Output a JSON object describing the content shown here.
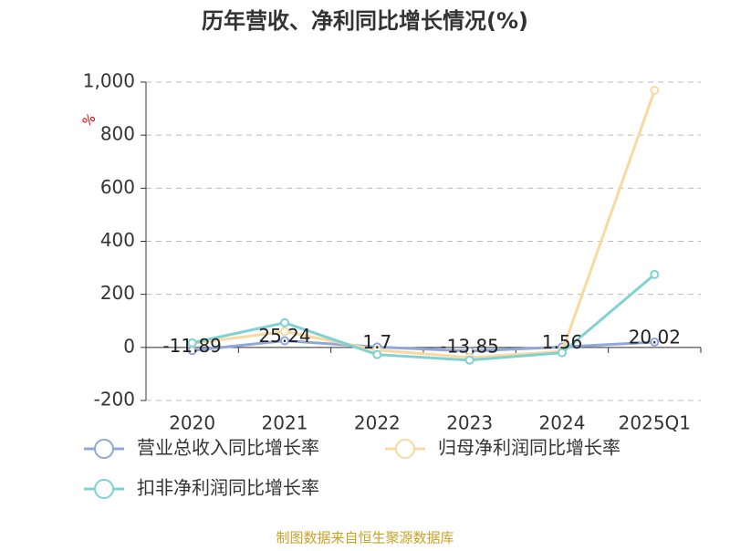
{
  "chart_data": {
    "type": "line",
    "title": "历年营收、净利同比增长情况(%)",
    "y_unit": "%",
    "source": "制图数据来自恒生聚源数据库",
    "categories": [
      "2020",
      "2021",
      "2022",
      "2023",
      "2024",
      "2025Q1"
    ],
    "series": [
      {
        "name": "营业总收入同比增长率",
        "color": "#8fa8d8",
        "values": [
          -11.89,
          25.24,
          1.7,
          -13.85,
          1.56,
          20.02
        ],
        "show_labels": true
      },
      {
        "name": "归母净利润同比增长率",
        "color": "#f8d9a0",
        "values": [
          15,
          60,
          -10,
          -38,
          -15,
          969
        ],
        "show_labels": false
      },
      {
        "name": "扣非净利润同比增长率",
        "color": "#80d2d2",
        "values": [
          17,
          93,
          -27,
          -48,
          -20,
          275
        ],
        "show_labels": false
      }
    ],
    "ylim": [
      -200,
      1000
    ],
    "yticks": [
      -200,
      0,
      200,
      400,
      600,
      800,
      {
        "value": 1000,
        "label": "1,000"
      }
    ],
    "grid": true
  }
}
